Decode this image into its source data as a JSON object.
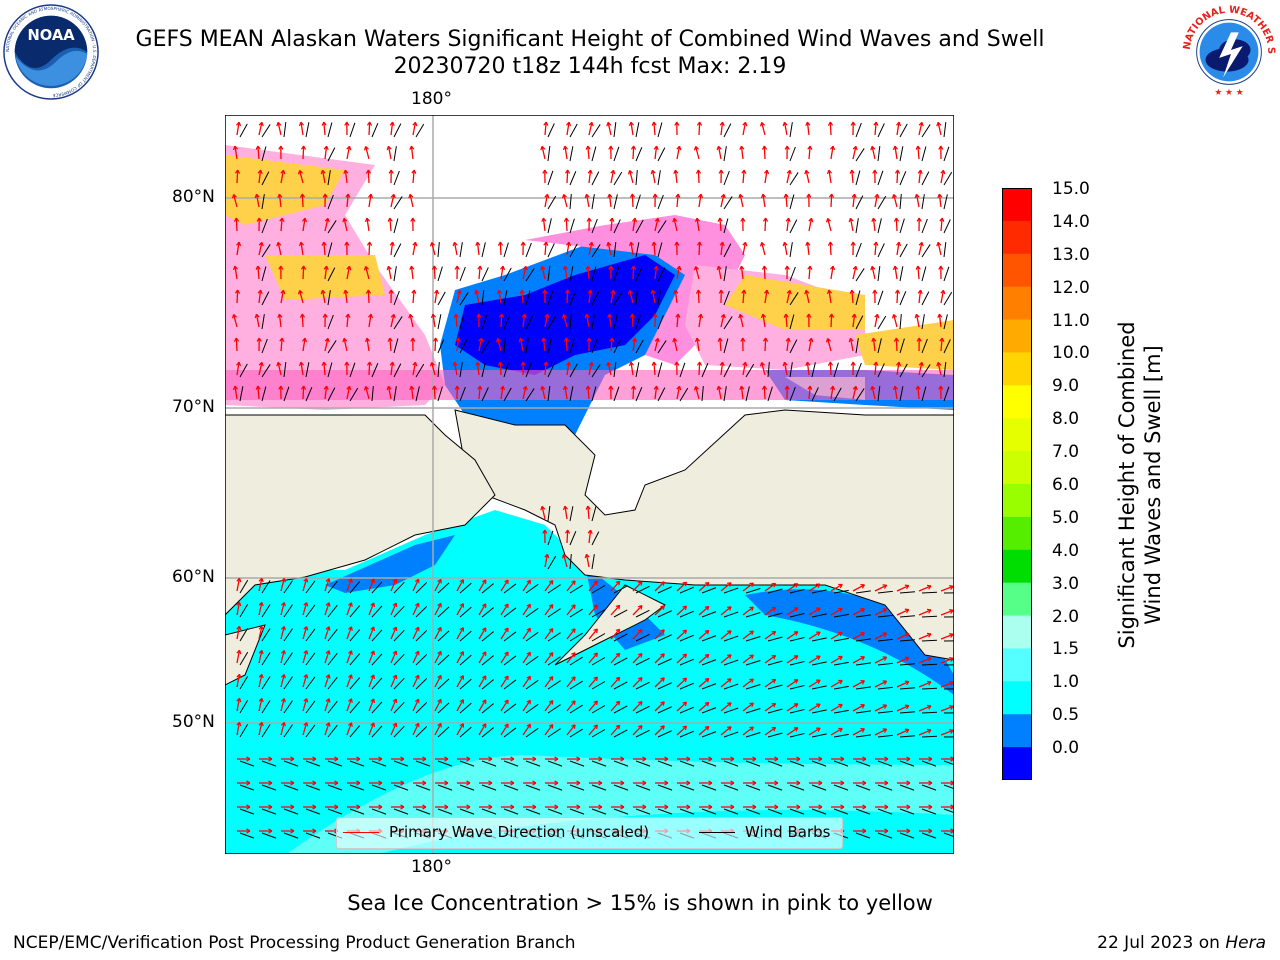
{
  "header": {
    "title_line1": "GEFS MEAN Alaskan Waters Significant Height of Combined Wind Waves and Swell",
    "title_line2": "20230720 t18z 144h fcst   Max: 2.19",
    "noaa_logo_text": "NOAA",
    "noaa_ring_text": "NATIONAL OCEANIC AND ATMOSPHERIC ADMINISTRATION · U.S. DEPARTMENT OF COMMERCE",
    "nws_ring_text": "NATIONAL WEATHER SERVICE"
  },
  "map": {
    "longitude_top": "180°",
    "longitude_bottom": "180°",
    "latitudes": [
      "80°N",
      "70°N",
      "60°N",
      "50°N"
    ],
    "land_color": "#efeddd",
    "legend": {
      "wave_label": "Primary Wave Direction (unscaled)",
      "wave_color": "#ff0000",
      "wind_label": "Wind Barbs",
      "wind_color": "#000000"
    }
  },
  "colorbar": {
    "label_line1": "Significant Height of Combined",
    "label_line2": "Wind Waves and Swell [m]",
    "ticks": [
      "15.0",
      "14.0",
      "13.0",
      "12.0",
      "11.0",
      "10.0",
      "9.0",
      "8.0",
      "7.0",
      "6.0",
      "5.0",
      "4.0",
      "3.0",
      "2.0",
      "1.5",
      "1.0",
      "0.5",
      "0.0"
    ],
    "colors_top_to_bottom": [
      "#ff0000",
      "#ff2a00",
      "#ff5500",
      "#ff8000",
      "#ffaa00",
      "#ffd400",
      "#ffff00",
      "#e6ff00",
      "#ccff00",
      "#99ff00",
      "#55ee00",
      "#00dd00",
      "#55ff88",
      "#aaffee",
      "#55ffff",
      "#00ffff",
      "#0080ff",
      "#0000ff"
    ]
  },
  "footer": {
    "ice_note": "Sea Ice Concentration > 15% is shown in pink to yellow",
    "left": "NCEP/EMC/Verification Post Processing Product Generation Branch",
    "right_prefix": "22 Jul 2023 on ",
    "right_host": "Hera"
  }
}
